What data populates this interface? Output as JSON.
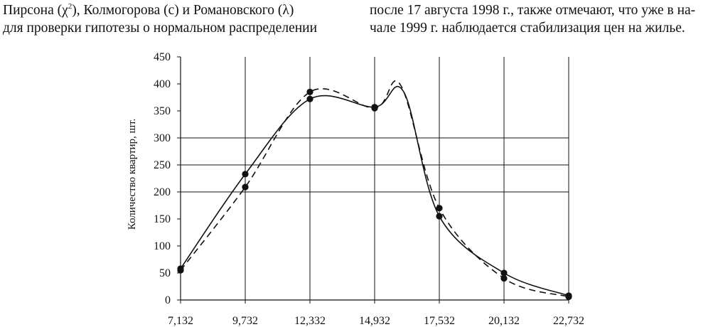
{
  "text_left": {
    "line1_a": "Пирсона (χ",
    "line1_sup": "2",
    "line1_b": "),",
    "line1_c": "Колмогорова",
    "line1_d": "(c)",
    "line1_e": "и",
    "line1_f": "Романовского",
    "line1_g": "(λ)",
    "line2": "для проверки гипотезы о нормальном распределении"
  },
  "text_right": {
    "line1": "после 17 августа 1998 г., также отмечают, что уже в на-",
    "line2": "чале 1999 г. наблюдается стабилизация цен на жилье."
  },
  "chart_data": {
    "type": "line",
    "ylabel": "Количество квартир, шт.",
    "xlabel": "",
    "title": "",
    "categories": [
      "7,132",
      "9,732",
      "12,332",
      "14,932",
      "17,532",
      "20,132",
      "22,732"
    ],
    "ylim": [
      0,
      450
    ],
    "yticks": [
      0,
      50,
      100,
      150,
      200,
      250,
      300,
      350,
      400,
      450
    ],
    "horizontal_grid": [
      200,
      250,
      300
    ],
    "vertical_grid": true,
    "series": [
      {
        "style": "solid",
        "values": [
          58,
          233,
          372,
          357,
          155,
          50,
          8
        ],
        "peak": {
          "x_index": 3.45,
          "value": 385
        }
      },
      {
        "style": "dashed",
        "values": [
          55,
          209,
          385,
          355,
          170,
          40,
          6
        ],
        "peak": {
          "x_index": 3.4,
          "value": 398
        }
      }
    ]
  }
}
